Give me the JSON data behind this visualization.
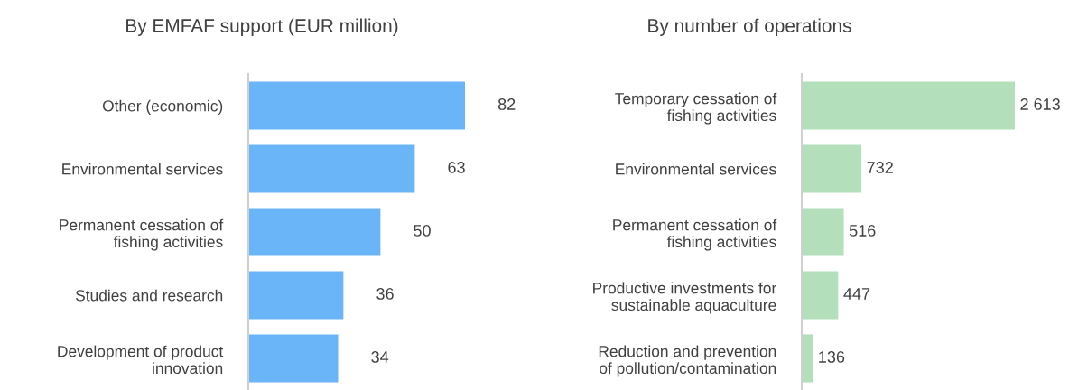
{
  "chart_data": [
    {
      "type": "bar",
      "orientation": "horizontal",
      "title": "By EMFAF support (EUR million)",
      "categories": [
        "Other (economic)",
        "Environmental services",
        "Permanent cessation of\nfishing activities",
        "Studies and research",
        "Development of product\ninnovation"
      ],
      "values": [
        82,
        63,
        50,
        36,
        34
      ],
      "color": "#6ab4f8",
      "data_labels": true
    },
    {
      "type": "bar",
      "orientation": "horizontal",
      "title": "By number of operations",
      "categories": [
        "Temporary cessation of\nfishing activities",
        "Environmental services",
        "Permanent cessation of\nfishing activities",
        "Productive investments for\nsustainable aquaculture",
        "Reduction and prevention\nof pollution/contamination"
      ],
      "values": [
        2613,
        732,
        516,
        447,
        136
      ],
      "color": "#b4dfbb",
      "value_labels": [
        "2 613",
        "732",
        "516",
        "447",
        "136"
      ]
    }
  ]
}
